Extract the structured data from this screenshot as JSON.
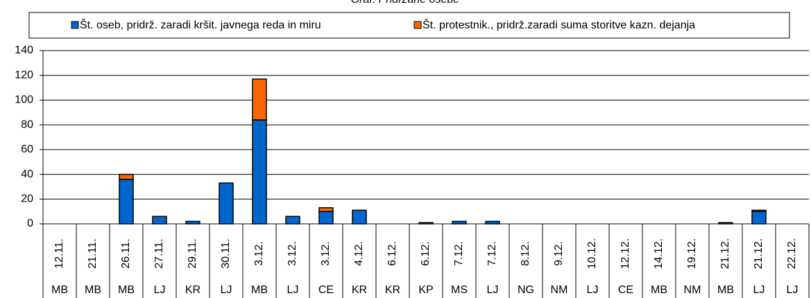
{
  "chart_data": {
    "type": "stacked_bar",
    "title": "Graf: Pridržane osebe",
    "categories": [
      "12.11.",
      "21.11.",
      "26.11.",
      "27.11.",
      "29.11.",
      "30.11.",
      "3.12.",
      "3.12.",
      "3.12.",
      "4.12.",
      "6.12.",
      "6.12.",
      "7.12.",
      "7.12.",
      "8.12.",
      "9.12.",
      "10.12.",
      "12.12.",
      "14.12.",
      "19.12.",
      "21.12.",
      "21.12.",
      "22.12."
    ],
    "cities": [
      "MB",
      "MB",
      "MB",
      "LJ",
      "KR",
      "LJ",
      "MB",
      "LJ",
      "CE",
      "KR",
      "KR",
      "KP",
      "MS",
      "LJ",
      "NG",
      "NM",
      "LJ",
      "CE",
      "MB",
      "NM",
      "MB",
      "LJ",
      "LJ"
    ],
    "series": [
      {
        "name": "Št. oseb, pridrž. zaradi kršit. javnega reda in miru",
        "color": "#0066cc",
        "values": [
          0,
          0,
          36,
          6,
          2,
          33,
          84,
          6,
          10,
          11,
          0,
          1,
          2,
          2,
          0,
          0,
          0,
          0,
          0,
          0,
          1,
          10,
          0
        ]
      },
      {
        "name": "Št. protestnik., pridrž.zaradi suma storitve kazn. dejanja",
        "color": "#ff6600",
        "values": [
          0,
          0,
          4,
          0,
          0,
          0,
          33,
          0,
          3,
          0,
          0,
          0,
          0,
          0,
          0,
          0,
          0,
          0,
          0,
          0,
          0,
          1,
          0
        ]
      }
    ],
    "ylim": [
      0,
      140
    ],
    "yticks": [
      0,
      20,
      40,
      60,
      80,
      100,
      120,
      140
    ],
    "grid": true
  }
}
